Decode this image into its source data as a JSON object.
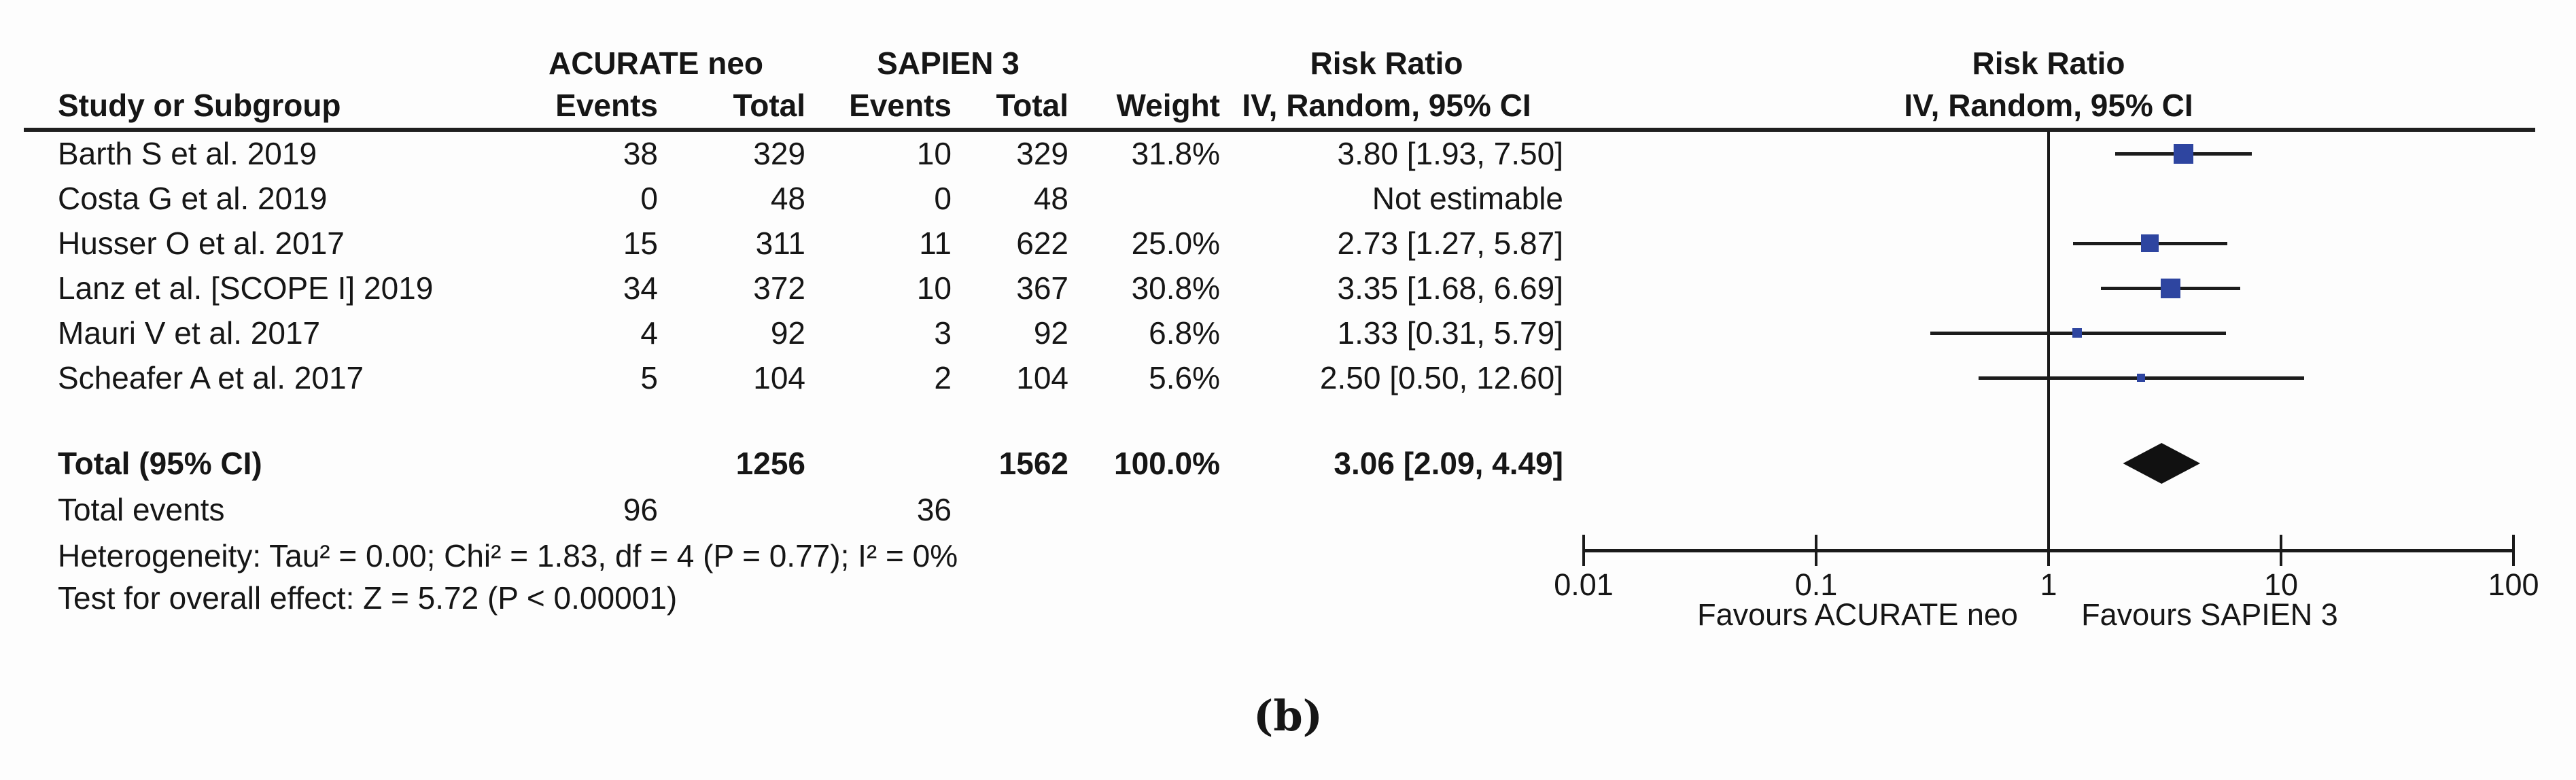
{
  "figure": {
    "columns": {
      "study": "Study or Subgroup",
      "group1": "ACURATE neo",
      "group2": "SAPIEN 3",
      "events1": "Events",
      "total1": "Total",
      "events2": "Events",
      "total2": "Total",
      "weight": "Weight",
      "rr_title": "Risk Ratio",
      "rr_subtitle": "IV, Random, 95% CI",
      "plot_title": "Risk Ratio",
      "plot_subtitle": "IV, Random, 95% CI"
    }
  },
  "chart_data": {
    "type": "forest",
    "scale": "log10",
    "effect_measure": "Risk Ratio, IV, Random, 95% CI",
    "axis": {
      "min": 0.01,
      "max": 100,
      "ticks": [
        0.01,
        0.1,
        1,
        10,
        100
      ],
      "tick_labels": [
        "0.01",
        "0.1",
        "1",
        "10",
        "100"
      ],
      "favours_left": "Favours ACURATE neo",
      "favours_right": "Favours SAPIEN 3"
    },
    "colors": {
      "square": "#2e45a0",
      "line": "#1c1c1c",
      "diamond": "#111111"
    },
    "studies": [
      {
        "name": "Barth S et al. 2019",
        "events1": "38",
        "total1": "329",
        "events2": "10",
        "total2": "329",
        "weight": "31.8%",
        "weight_value": 31.8,
        "rr": 3.8,
        "lo": 1.93,
        "hi": 7.5,
        "rr_text": "3.80 [1.93, 7.50]",
        "estimable": true
      },
      {
        "name": "Costa G et al. 2019",
        "events1": "0",
        "total1": "48",
        "events2": "0",
        "total2": "48",
        "weight": "",
        "weight_value": 0,
        "rr_text": "Not estimable",
        "estimable": false
      },
      {
        "name": "Husser O et al. 2017",
        "events1": "15",
        "total1": "311",
        "events2": "11",
        "total2": "622",
        "weight": "25.0%",
        "weight_value": 25.0,
        "rr": 2.73,
        "lo": 1.27,
        "hi": 5.87,
        "rr_text": "2.73 [1.27, 5.87]",
        "estimable": true
      },
      {
        "name": "Lanz et al. [SCOPE I] 2019",
        "events1": "34",
        "total1": "372",
        "events2": "10",
        "total2": "367",
        "weight": "30.8%",
        "weight_value": 30.8,
        "rr": 3.35,
        "lo": 1.68,
        "hi": 6.69,
        "rr_text": "3.35 [1.68, 6.69]",
        "estimable": true
      },
      {
        "name": "Mauri V et al. 2017",
        "events1": "4",
        "total1": "92",
        "events2": "3",
        "total2": "92",
        "weight": "6.8%",
        "weight_value": 6.8,
        "rr": 1.33,
        "lo": 0.31,
        "hi": 5.79,
        "rr_text": "1.33 [0.31, 5.79]",
        "estimable": true
      },
      {
        "name": "Scheafer A et al. 2017",
        "events1": "5",
        "total1": "104",
        "events2": "2",
        "total2": "104",
        "weight": "5.6%",
        "weight_value": 5.6,
        "rr": 2.5,
        "lo": 0.5,
        "hi": 12.6,
        "rr_text": "2.50 [0.50, 12.60]",
        "estimable": true
      }
    ],
    "total": {
      "label": "Total (95% CI)",
      "total1": "1256",
      "total2": "1562",
      "weight": "100.0%",
      "rr": 3.06,
      "lo": 2.09,
      "hi": 4.49,
      "rr_text": "3.06 [2.09, 4.49]"
    },
    "total_events": {
      "label": "Total events",
      "events1": "96",
      "events2": "36"
    },
    "heterogeneity": "Heterogeneity: Tau² = 0.00; Chi² = 1.83, df = 4 (P = 0.77); I² = 0%",
    "overall_effect": "Test for overall effect: Z = 5.72 (P < 0.00001)"
  },
  "caption": "(b)"
}
